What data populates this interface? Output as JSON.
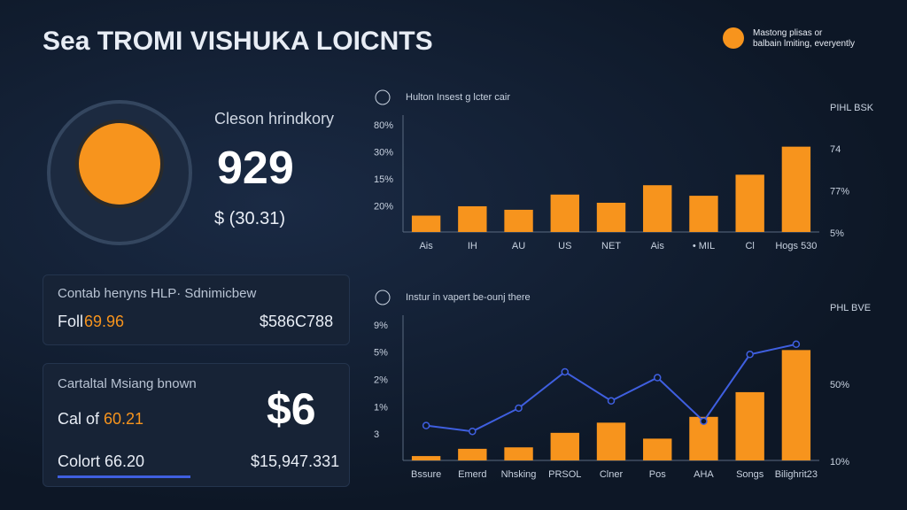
{
  "header": {
    "title": "Sea TROMI VISHUKA LOICNTS",
    "note": [
      "Mastong plisas or",
      "balbain lmiting, everyently"
    ]
  },
  "summary": {
    "label": "Cleson hrindkory",
    "value": "929",
    "sub": "$ (30.31)"
  },
  "card_1": {
    "title": "Contab henyns HLP· Sdnimicbew",
    "row_label": "Foll",
    "row_value": "69.96",
    "amount": "$586C788"
  },
  "card_2": {
    "title": "Cartaltal Msiang bnown",
    "row_1_label": "Cal of",
    "row_1_value": "60.21",
    "big_value": "$6",
    "row_2_label": "Colort 66.20",
    "row_2_amount": "$15,947.331"
  },
  "chart_data": [
    {
      "type": "bar",
      "title": "Hulton Insest g lcter cair",
      "categories": [
        "Ais",
        "IH",
        "AU",
        "US",
        "NET",
        "Ais",
        "• MIL",
        "Cl",
        "Hogs 530"
      ],
      "series": [
        {
          "kind": "bar",
          "color": "#f7941d",
          "values": [
            14,
            22,
            19,
            32,
            25,
            40,
            31,
            49,
            73
          ]
        }
      ],
      "ylim": [
        0,
        100
      ],
      "left_labels": [
        "80%",
        "30%",
        "15%",
        "20%"
      ],
      "right_labels": [
        "PIHL BSK",
        "74",
        "77%",
        "5%"
      ]
    },
    {
      "type": "combo",
      "title": "Instur in vapert be-ounj there",
      "categories": [
        "Bssure",
        "Emerd",
        "Nhsking",
        "PRSOL",
        "Clner",
        "Pos",
        "AHA",
        "Songs",
        "Bilighrit23"
      ],
      "series": [
        {
          "kind": "bar",
          "color": "#f7941d",
          "values": [
            3,
            8,
            9,
            19,
            26,
            15,
            30,
            47,
            76
          ]
        },
        {
          "kind": "line",
          "color": "#3f5fe0",
          "values": [
            24,
            20,
            36,
            61,
            41,
            57,
            27,
            73,
            80
          ]
        }
      ],
      "ylim": [
        0,
        100
      ],
      "left_labels": [
        "9%",
        "5%",
        "2%",
        "1%",
        "3"
      ],
      "right_labels": [
        "PHL BVE",
        "50%",
        "10%"
      ]
    }
  ]
}
